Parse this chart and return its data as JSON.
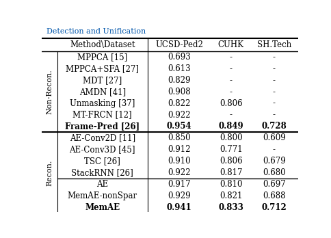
{
  "header": [
    "Method\\Dataset",
    "UCSD-Ped2",
    "CUHK",
    "SH.Tech"
  ],
  "non_recon_rows": [
    {
      "method": "MPPCA [15]",
      "values": [
        "0.693",
        "-",
        "-"
      ],
      "bold": [
        false,
        false,
        false
      ]
    },
    {
      "method": "MPPCA+SFA [27]",
      "values": [
        "0.613",
        "-",
        "-"
      ],
      "bold": [
        false,
        false,
        false
      ]
    },
    {
      "method": "MDT [27]",
      "values": [
        "0.829",
        "-",
        "-"
      ],
      "bold": [
        false,
        false,
        false
      ]
    },
    {
      "method": "AMDN [41]",
      "values": [
        "0.908",
        "-",
        "-"
      ],
      "bold": [
        false,
        false,
        false
      ]
    },
    {
      "method": "Unmasking [37]",
      "values": [
        "0.822",
        "0.806",
        "-"
      ],
      "bold": [
        false,
        false,
        false
      ]
    },
    {
      "method": "MT-FRCN [12]",
      "values": [
        "0.922",
        "-",
        "-"
      ],
      "bold": [
        false,
        false,
        false
      ]
    },
    {
      "method": "Frame-Pred [26]",
      "values": [
        "0.954",
        "0.849",
        "0.728"
      ],
      "bold": [
        true,
        true,
        true
      ]
    }
  ],
  "recon_rows_top": [
    {
      "method": "AE-Conv2D [11]",
      "values": [
        "0.850",
        "0.800",
        "0.609"
      ],
      "bold": [
        false,
        false,
        false
      ]
    },
    {
      "method": "AE-Conv3D [45]",
      "values": [
        "0.912",
        "0.771",
        "-"
      ],
      "bold": [
        false,
        false,
        false
      ]
    },
    {
      "method": "TSC [26]",
      "values": [
        "0.910",
        "0.806",
        "0.679"
      ],
      "bold": [
        false,
        false,
        false
      ]
    },
    {
      "method": "StackRNN [26]",
      "values": [
        "0.922",
        "0.817",
        "0.680"
      ],
      "bold": [
        false,
        false,
        false
      ]
    }
  ],
  "recon_rows_bot": [
    {
      "method": "AE",
      "values": [
        "0.917",
        "0.810",
        "0.697"
      ],
      "bold": [
        false,
        false,
        false
      ]
    },
    {
      "method": "MemAE-nonSpar",
      "values": [
        "0.929",
        "0.821",
        "0.688"
      ],
      "bold": [
        false,
        false,
        false
      ]
    },
    {
      "method": "MemAE",
      "values": [
        "0.941",
        "0.833",
        "0.712"
      ],
      "bold": [
        true,
        true,
        true
      ]
    }
  ],
  "non_recon_label": "Non-Recon.",
  "recon_label": "Recon.",
  "font_size": 8.5,
  "title_partial": "Detection and Unification"
}
